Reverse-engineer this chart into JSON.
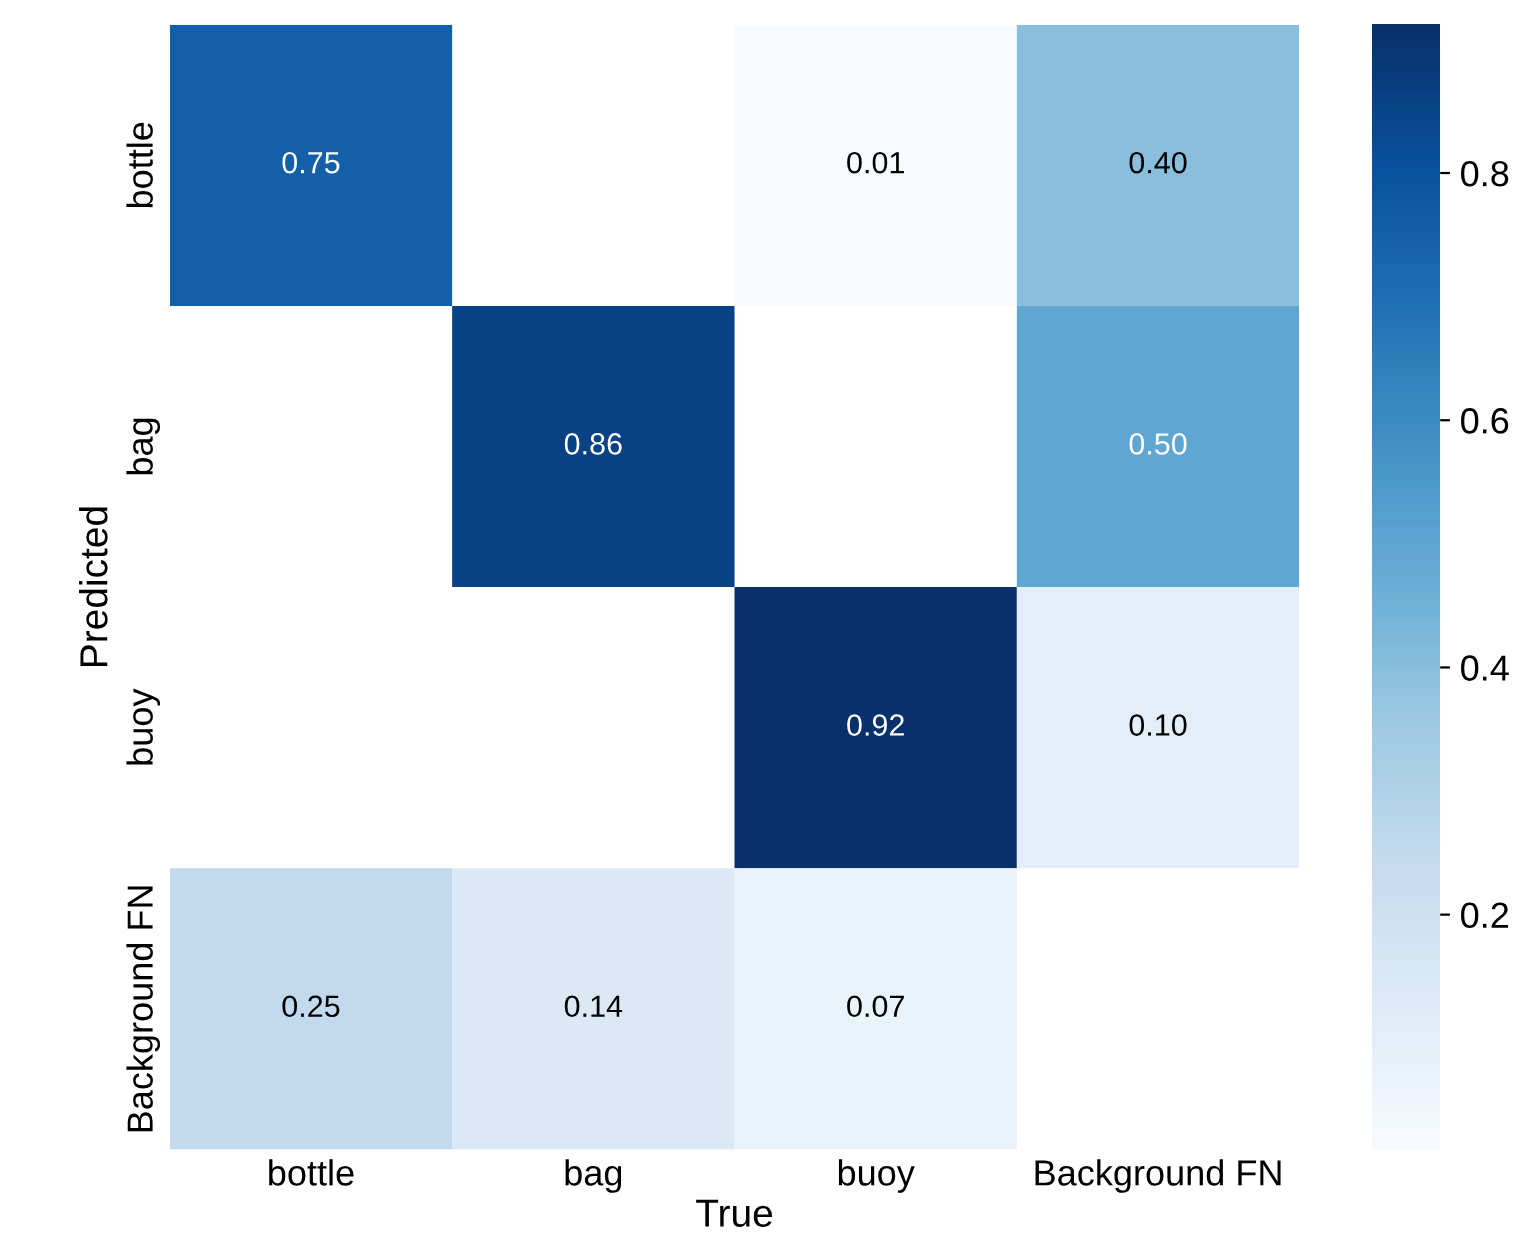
{
  "chart_data": {
    "type": "heatmap",
    "xlabel": "True",
    "ylabel": "Predicted",
    "categories": [
      "bottle",
      "bag",
      "buoy",
      "Background FN"
    ],
    "y_categories": [
      "bottle",
      "bag",
      "buoy",
      "Background FN"
    ],
    "cells": [
      [
        0.75,
        null,
        0.01,
        0.4
      ],
      [
        null,
        0.86,
        null,
        0.5
      ],
      [
        null,
        null,
        0.92,
        0.1
      ],
      [
        0.25,
        0.14,
        0.07,
        null
      ]
    ],
    "cell_labels": [
      [
        "0.75",
        null,
        "0.01",
        "0.40"
      ],
      [
        null,
        "0.86",
        null,
        "0.50"
      ],
      [
        null,
        null,
        "0.92",
        "0.10"
      ],
      [
        "0.25",
        "0.14",
        "0.07",
        null
      ]
    ],
    "clim": [
      0.01,
      0.92
    ],
    "cticks": [
      0.2,
      0.4,
      0.6,
      0.8
    ]
  }
}
